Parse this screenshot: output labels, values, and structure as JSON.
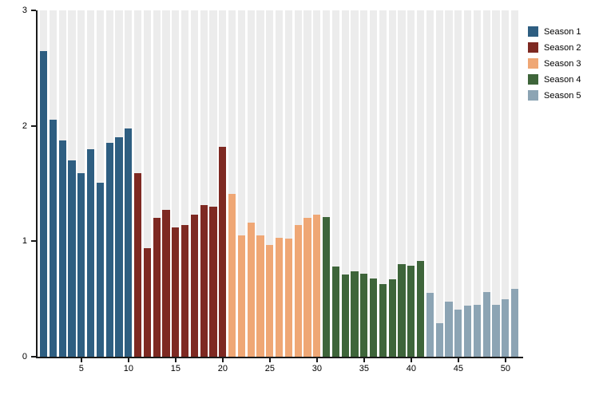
{
  "chart_data": {
    "type": "bar",
    "title": "",
    "xlabel": "",
    "ylabel": "",
    "ylim": [
      0,
      3
    ],
    "xlim": [
      0,
      52
    ],
    "grid": false,
    "background_band_color": "#ececec",
    "axis_color": "#1a1a1a",
    "legend_position": "top-right-outside",
    "y_ticks": [
      "0",
      "1",
      "2",
      "3"
    ],
    "y_tick_values": [
      0,
      1,
      2,
      3
    ],
    "x_ticks": [
      "5",
      "10",
      "15",
      "20",
      "25",
      "30",
      "35",
      "40",
      "45",
      "50"
    ],
    "x_tick_values": [
      5,
      10,
      15,
      20,
      25,
      30,
      35,
      40,
      45,
      50
    ],
    "series": [
      {
        "name": "Season 1",
        "color": "#2e5e81",
        "x_start": 1,
        "values": [
          2.65,
          2.05,
          1.87,
          1.7,
          1.59,
          1.8,
          1.51,
          1.85,
          1.9,
          1.98
        ]
      },
      {
        "name": "Season 2",
        "color": "#7e2922",
        "x_start": 11,
        "values": [
          1.59,
          0.94,
          1.2,
          1.27,
          1.12,
          1.14,
          1.23,
          1.31,
          1.3,
          1.82
        ]
      },
      {
        "name": "Season 3",
        "color": "#efa775",
        "x_start": 21,
        "values": [
          1.41,
          1.05,
          1.16,
          1.05,
          0.97,
          1.03,
          1.02,
          1.14,
          1.2,
          1.23
        ]
      },
      {
        "name": "Season 4",
        "color": "#3e653a",
        "x_start": 31,
        "values": [
          1.21,
          0.78,
          0.71,
          0.74,
          0.72,
          0.68,
          0.63,
          0.67,
          0.8,
          0.79,
          0.83
        ]
      },
      {
        "name": "Season 5",
        "color": "#8ca4b4",
        "x_start": 42,
        "values": [
          0.55,
          0.29,
          0.48,
          0.41,
          0.44,
          0.45,
          0.56,
          0.45,
          0.5,
          0.59
        ]
      }
    ]
  },
  "colors": {
    "page_background": "#ffffff",
    "band": "#ececec",
    "axis": "#1a1a1a",
    "season1": "#2e5e81",
    "season2": "#7e2922",
    "season3": "#efa775",
    "season4": "#3e653a",
    "season5": "#8ca4b4"
  }
}
